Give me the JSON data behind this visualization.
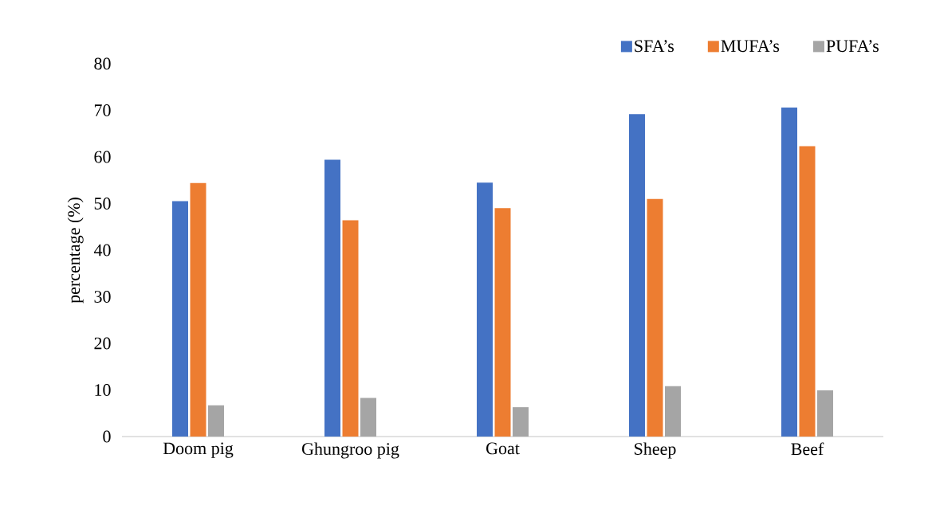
{
  "chart_data": {
    "type": "bar",
    "ylabel": "percentage (%)",
    "categories": [
      "Doom pig",
      "Ghungroo pig",
      "Goat",
      "Sheep",
      "Beef"
    ],
    "series": [
      {
        "name": "SFA’s",
        "color": "#4472c4",
        "values": [
          50.5,
          59.4,
          54.5,
          69.2,
          70.6
        ]
      },
      {
        "name": "MUFA’s",
        "color": "#ed7d31",
        "values": [
          54.4,
          46.4,
          49.0,
          51.0,
          62.3
        ]
      },
      {
        "name": "PUFA’s",
        "color": "#a5a5a5",
        "values": [
          6.7,
          8.3,
          6.3,
          10.8,
          9.9
        ]
      }
    ],
    "ylim": [
      0,
      80
    ],
    "yticks": [
      0,
      10,
      20,
      30,
      40,
      50,
      60,
      70,
      80
    ],
    "legend": "top right"
  }
}
